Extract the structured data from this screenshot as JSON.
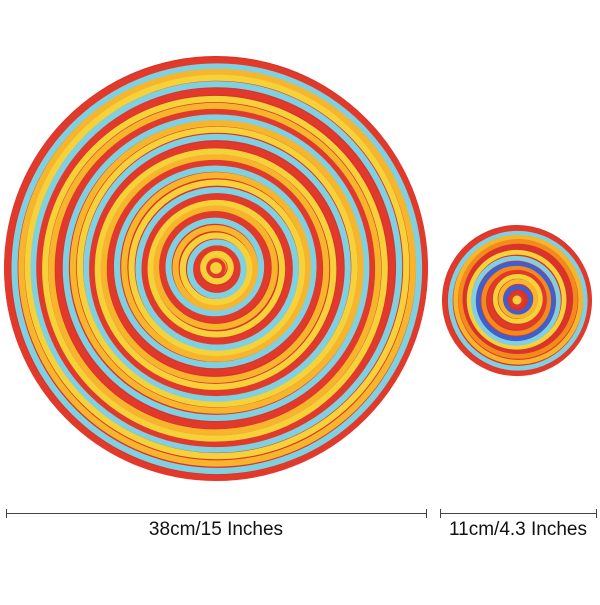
{
  "product": {
    "large_mat": {
      "name": "large-placemat",
      "colors": [
        "#e23a2a",
        "#f28a1c",
        "#f5d23a",
        "#2f4fb8",
        "#7fd0e0",
        "#d9332b",
        "#f6b52c",
        "#3b57c9"
      ]
    },
    "small_mat": {
      "name": "small-coaster",
      "colors": [
        "#e23a2a",
        "#3f5fd0",
        "#f5d23a",
        "#f28a1c",
        "#7fd0e0",
        "#d9332b",
        "#f6b52c"
      ]
    }
  },
  "dimensions": {
    "large_label": "38cm/15 Inches",
    "small_label": "11cm/4.3 Inches",
    "line_color": "#444444"
  }
}
